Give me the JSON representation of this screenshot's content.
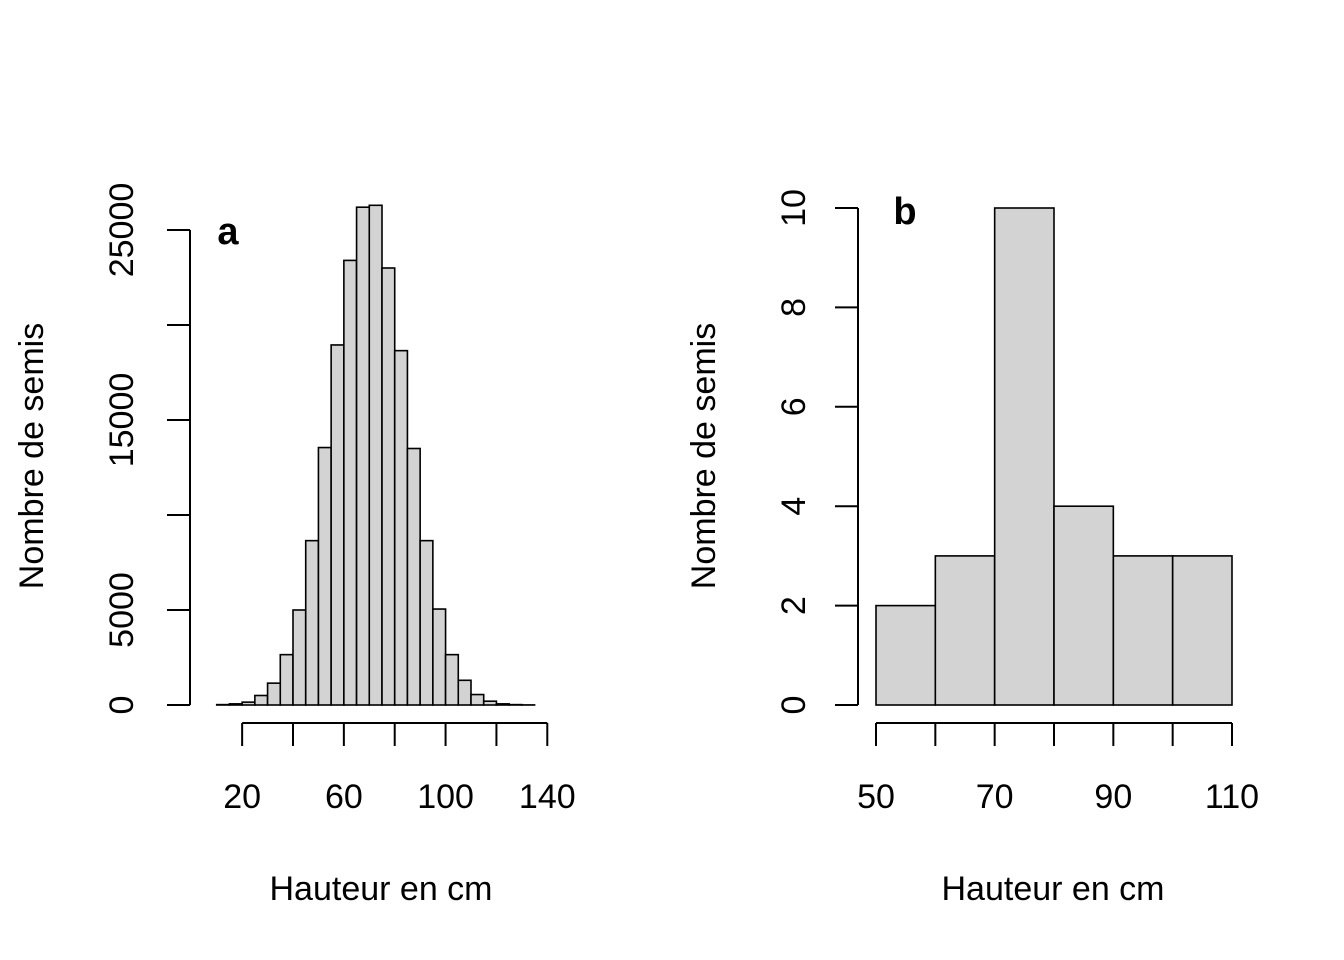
{
  "chart_data": [
    {
      "type": "bar",
      "panel_label": "a",
      "xlabel": "Hauteur en cm",
      "ylabel": "Nombre de semis",
      "xlim": [
        5,
        145
      ],
      "ylim": [
        0,
        25000
      ],
      "x_ticks": [
        20,
        40,
        60,
        80,
        100,
        120,
        140
      ],
      "x_tick_labels": [
        "20",
        "",
        "60",
        "",
        "100",
        "",
        "140"
      ],
      "y_ticks": [
        0,
        5000,
        10000,
        15000,
        20000,
        25000
      ],
      "y_tick_labels": [
        "0",
        "5000",
        "",
        "15000",
        "",
        "25000"
      ],
      "bin_edges": [
        10,
        15,
        20,
        25,
        30,
        35,
        40,
        45,
        50,
        55,
        60,
        65,
        70,
        75,
        80,
        85,
        90,
        95,
        100,
        105,
        110,
        115,
        120,
        125,
        130,
        135
      ],
      "values": [
        20,
        60,
        150,
        500,
        1150,
        2650,
        5000,
        8650,
        13550,
        18950,
        23400,
        26200,
        26300,
        23000,
        18650,
        13500,
        8650,
        5050,
        2650,
        1300,
        550,
        200,
        60,
        20,
        5
      ]
    },
    {
      "type": "bar",
      "panel_label": "b",
      "xlabel": "Hauteur en cm",
      "ylabel": "Nombre de semis",
      "xlim": [
        50,
        110
      ],
      "ylim": [
        0,
        10
      ],
      "x_ticks": [
        50,
        60,
        70,
        80,
        90,
        100,
        110
      ],
      "x_tick_labels": [
        "50",
        "",
        "70",
        "",
        "90",
        "",
        "110"
      ],
      "y_ticks": [
        0,
        2,
        4,
        6,
        8,
        10
      ],
      "y_tick_labels": [
        "0",
        "2",
        "4",
        "6",
        "8",
        "10"
      ],
      "bin_edges": [
        50,
        60,
        70,
        80,
        90,
        100,
        110
      ],
      "values": [
        2,
        3,
        10,
        4,
        3,
        3
      ]
    }
  ]
}
